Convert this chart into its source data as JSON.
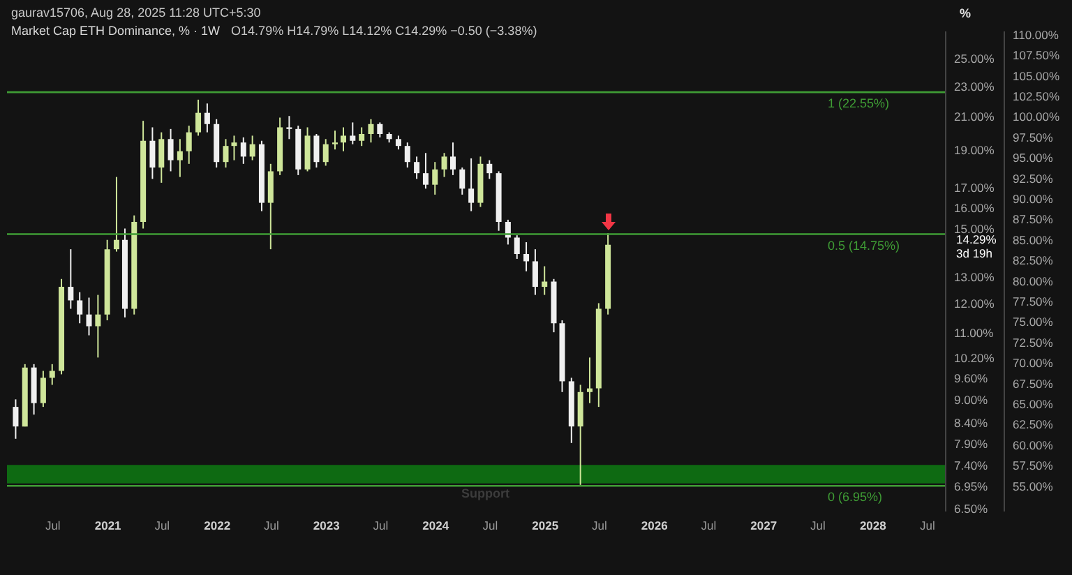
{
  "chart_data": {
    "type": "candlestick",
    "title": "Market Cap ETH Dominance, % · 1W",
    "subtitle": "O14.79%  H14.79%  L14.12%  C14.29%  −0.50 (−3.38%)",
    "ylabel": "%",
    "annotations": [
      "gaurav15706, Aug 28, 2025 11:28 UTC+5:30",
      "14.29%",
      "3d 19h"
    ],
    "x": [
      "2020-03",
      "2020-04",
      "2020-05",
      "2020-06",
      "2020-07",
      "2020-08",
      "2020-09",
      "2020-10",
      "2020-11",
      "2020-12",
      "2021-01",
      "2021-02",
      "2021-03",
      "2021-04",
      "2021-05",
      "2021-06",
      "2021-07",
      "2021-08",
      "2021-09",
      "2021-10",
      "2021-11",
      "2021-12",
      "2022-01",
      "2022-02",
      "2022-03",
      "2022-04",
      "2022-05",
      "2022-06",
      "2022-07",
      "2022-08",
      "2022-09",
      "2022-10",
      "2022-11",
      "2022-12",
      "2023-01",
      "2023-02",
      "2023-03",
      "2023-04",
      "2023-05",
      "2023-06",
      "2023-07",
      "2023-08",
      "2023-09",
      "2023-10",
      "2023-11",
      "2023-12",
      "2024-01",
      "2024-02",
      "2024-03",
      "2024-04",
      "2024-05",
      "2024-06",
      "2024-07",
      "2024-08",
      "2024-09",
      "2024-10",
      "2024-11",
      "2024-12",
      "2025-01",
      "2025-02",
      "2025-03",
      "2025-04",
      "2025-05",
      "2025-06",
      "2025-07",
      "2025-08"
    ],
    "ohlc": [
      [
        8.8,
        9.0,
        8.0,
        8.3
      ],
      [
        8.3,
        10.0,
        8.3,
        9.9
      ],
      [
        9.9,
        10.0,
        8.6,
        8.9
      ],
      [
        8.9,
        9.8,
        8.8,
        9.6
      ],
      [
        9.6,
        10.0,
        9.4,
        9.8
      ],
      [
        9.8,
        12.9,
        9.7,
        12.6
      ],
      [
        12.6,
        14.1,
        11.8,
        12.1
      ],
      [
        12.1,
        12.4,
        11.3,
        11.6
      ],
      [
        11.6,
        12.2,
        10.9,
        11.2
      ],
      [
        11.2,
        12.3,
        10.2,
        11.6
      ],
      [
        11.6,
        14.5,
        11.4,
        14.1
      ],
      [
        14.1,
        17.5,
        14.0,
        14.5
      ],
      [
        14.5,
        15.0,
        11.5,
        11.8
      ],
      [
        11.8,
        15.6,
        11.6,
        15.3
      ],
      [
        15.3,
        20.7,
        15.0,
        19.5
      ],
      [
        19.5,
        20.3,
        17.4,
        18.0
      ],
      [
        18.0,
        20.0,
        17.2,
        19.6
      ],
      [
        19.6,
        20.2,
        17.8,
        18.4
      ],
      [
        18.4,
        19.6,
        17.5,
        18.9
      ],
      [
        18.9,
        20.4,
        18.2,
        20.0
      ],
      [
        20.0,
        22.05,
        19.8,
        21.2
      ],
      [
        21.2,
        21.8,
        20.0,
        20.5
      ],
      [
        20.5,
        20.8,
        18.0,
        18.3
      ],
      [
        18.3,
        19.6,
        18.0,
        19.2
      ],
      [
        19.2,
        19.8,
        18.4,
        19.4
      ],
      [
        19.4,
        19.7,
        18.2,
        18.6
      ],
      [
        18.6,
        19.8,
        18.4,
        19.3
      ],
      [
        19.3,
        19.5,
        15.8,
        16.2
      ],
      [
        16.2,
        18.2,
        14.1,
        17.8
      ],
      [
        17.8,
        20.9,
        17.6,
        20.3
      ],
      [
        20.3,
        21.0,
        19.6,
        20.2
      ],
      [
        20.2,
        20.4,
        17.6,
        17.9
      ],
      [
        17.9,
        20.3,
        17.8,
        19.8
      ],
      [
        19.8,
        19.9,
        18.0,
        18.3
      ],
      [
        18.3,
        19.6,
        18.1,
        19.3
      ],
      [
        19.3,
        20.1,
        19.0,
        19.4
      ],
      [
        19.4,
        20.3,
        18.9,
        19.8
      ],
      [
        19.8,
        20.6,
        19.3,
        19.5
      ],
      [
        19.5,
        20.3,
        19.2,
        19.9
      ],
      [
        19.9,
        20.8,
        19.4,
        20.5
      ],
      [
        20.5,
        20.6,
        19.7,
        19.9
      ],
      [
        19.9,
        20.0,
        19.4,
        19.6
      ],
      [
        19.6,
        19.8,
        19.0,
        19.2
      ],
      [
        19.2,
        19.4,
        18.0,
        18.3
      ],
      [
        18.3,
        18.6,
        17.4,
        17.7
      ],
      [
        17.7,
        18.8,
        16.9,
        17.1
      ],
      [
        17.1,
        18.3,
        16.6,
        17.9
      ],
      [
        17.9,
        18.8,
        17.5,
        18.6
      ],
      [
        18.6,
        19.4,
        17.6,
        17.9
      ],
      [
        17.9,
        18.0,
        16.6,
        16.9
      ],
      [
        16.9,
        18.5,
        15.8,
        16.2
      ],
      [
        16.2,
        18.6,
        16.0,
        18.2
      ],
      [
        18.2,
        18.4,
        17.4,
        17.7
      ],
      [
        17.7,
        17.8,
        14.9,
        15.3
      ],
      [
        15.3,
        15.4,
        14.3,
        14.6
      ],
      [
        14.6,
        14.7,
        13.7,
        13.9
      ],
      [
        13.9,
        14.4,
        13.2,
        13.6
      ],
      [
        13.6,
        14.1,
        12.3,
        12.6
      ],
      [
        12.6,
        13.4,
        12.3,
        12.8
      ],
      [
        12.8,
        12.9,
        11.0,
        11.3
      ],
      [
        11.3,
        11.4,
        9.2,
        9.5
      ],
      [
        9.5,
        9.6,
        7.9,
        8.3
      ],
      [
        8.3,
        9.4,
        6.97,
        9.2
      ],
      [
        9.2,
        10.2,
        8.9,
        9.3
      ],
      [
        9.3,
        12.0,
        8.8,
        11.8
      ],
      [
        11.8,
        14.79,
        11.6,
        14.29
      ]
    ],
    "colors": [
      "#f0f0f0",
      "#cfe69a",
      "#f0f0f0",
      "#cfe69a",
      "#cfe69a",
      "#cfe69a",
      "#f0f0f0",
      "#f0f0f0",
      "#f0f0f0",
      "#cfe69a",
      "#cfe69a",
      "#cfe69a",
      "#f0f0f0",
      "#cfe69a",
      "#cfe69a",
      "#f0f0f0",
      "#cfe69a",
      "#f0f0f0",
      "#cfe69a",
      "#cfe69a",
      "#cfe69a",
      "#f0f0f0",
      "#f0f0f0",
      "#cfe69a",
      "#cfe69a",
      "#f0f0f0",
      "#cfe69a",
      "#f0f0f0",
      "#cfe69a",
      "#cfe69a",
      "#f0f0f0",
      "#f0f0f0",
      "#cfe69a",
      "#f0f0f0",
      "#cfe69a",
      "#cfe69a",
      "#cfe69a",
      "#f0f0f0",
      "#cfe69a",
      "#cfe69a",
      "#f0f0f0",
      "#f0f0f0",
      "#f0f0f0",
      "#f0f0f0",
      "#f0f0f0",
      "#f0f0f0",
      "#cfe69a",
      "#cfe69a",
      "#f0f0f0",
      "#f0f0f0",
      "#f0f0f0",
      "#cfe69a",
      "#f0f0f0",
      "#f0f0f0",
      "#f0f0f0",
      "#f0f0f0",
      "#f0f0f0",
      "#f0f0f0",
      "#cfe69a",
      "#f0f0f0",
      "#f0f0f0",
      "#f0f0f0",
      "#cfe69a",
      "#cfe69a",
      "#cfe69a",
      "#cfe69a"
    ],
    "log": true,
    "xlim": [
      "2020-02-01",
      "2028-08-31"
    ],
    "xticks": [
      {
        "value": "2020-07",
        "label": "Jul"
      },
      "2021",
      {
        "value": "2021-07",
        "label": "Jul"
      },
      "2022",
      {
        "value": "2022-07",
        "label": "Jul"
      },
      "2023",
      {
        "value": "2023-07",
        "label": "Jul"
      },
      "2024",
      {
        "value": "2024-07",
        "label": "Jul"
      },
      "2025",
      {
        "value": "2025-07",
        "label": "Jul"
      },
      "2026",
      {
        "value": "2026-07",
        "label": "Jul"
      },
      "2027",
      {
        "value": "2027-07",
        "label": "Jul"
      },
      "2028",
      {
        "value": "2028-07",
        "label": "Jul"
      }
    ],
    "ylim": [
      6.45,
      27.1
    ],
    "yticks": [
      {
        "value": 6.5,
        "label": "6.50%"
      },
      {
        "value": 6.95,
        "label": "6.95%"
      },
      {
        "value": 7.4,
        "label": "7.40%"
      },
      {
        "value": 7.9,
        "label": "7.90%"
      },
      {
        "value": 8.4,
        "label": "8.40%"
      },
      {
        "value": 9,
        "label": "9.00%"
      },
      {
        "value": 9.6,
        "label": "9.60%"
      },
      {
        "value": 10.2,
        "label": "10.20%"
      },
      {
        "value": 11,
        "label": "11.00%"
      },
      {
        "value": 12,
        "label": "12.00%"
      },
      {
        "value": 13,
        "label": "13.00%"
      },
      {
        "value": 15,
        "label": "15.00%"
      },
      {
        "value": 16,
        "label": "16.00%"
      },
      {
        "value": 17,
        "label": "17.00%"
      },
      {
        "value": 19,
        "label": "19.00%"
      },
      {
        "value": 21,
        "label": "21.00%"
      },
      {
        "value": 23,
        "label": "23.00%"
      },
      {
        "value": 25,
        "label": "25.00%"
      }
    ],
    "y2lim": [
      51.9,
      110.4
    ],
    "y2ticks": [
      {
        "value": 55,
        "label": "55.00%"
      },
      {
        "value": 57.5,
        "label": "57.50%"
      },
      {
        "value": 60,
        "label": "60.00%"
      },
      {
        "value": 62.5,
        "label": "62.50%"
      },
      {
        "value": 65,
        "label": "65.00%"
      },
      {
        "value": 67.5,
        "label": "67.50%"
      },
      {
        "value": 70,
        "label": "70.00%"
      },
      {
        "value": 72.5,
        "label": "72.50%"
      },
      {
        "value": 75,
        "label": "75.00%"
      },
      {
        "value": 77.5,
        "label": "77.50%"
      },
      {
        "value": 80,
        "label": "80.00%"
      },
      {
        "value": 82.5,
        "label": "82.50%"
      },
      {
        "value": 85,
        "label": "85.00%"
      },
      {
        "value": 87.5,
        "label": "87.50%"
      },
      {
        "value": 90,
        "label": "90.00%"
      },
      {
        "value": 92.5,
        "label": "92.50%"
      },
      {
        "value": 95,
        "label": "95.00%"
      },
      {
        "value": 97.5,
        "label": "97.50%"
      },
      {
        "value": 100,
        "label": "100.00%"
      },
      {
        "value": 102.5,
        "label": "102.50%"
      },
      {
        "value": 105,
        "label": "105.00%"
      },
      {
        "value": 107.5,
        "label": "107.50%"
      },
      {
        "value": 110,
        "label": "110.00%"
      }
    ],
    "ref_lines": [
      {
        "axis": "y",
        "value": 22.55,
        "label": "1 (22.55%)",
        "color": "#3f9c35"
      },
      {
        "axis": "y",
        "value": 14.75,
        "label": "0.5 (14.75%)",
        "color": "#3f9c35"
      },
      {
        "axis": "y",
        "value": 6.95,
        "label": "0 (6.95%)",
        "color": "#3f9c35"
      }
    ],
    "bands": [
      {
        "axis": "y",
        "from": 7.0,
        "to": 7.4,
        "label": "Support",
        "color": "#0e6a12"
      }
    ]
  }
}
